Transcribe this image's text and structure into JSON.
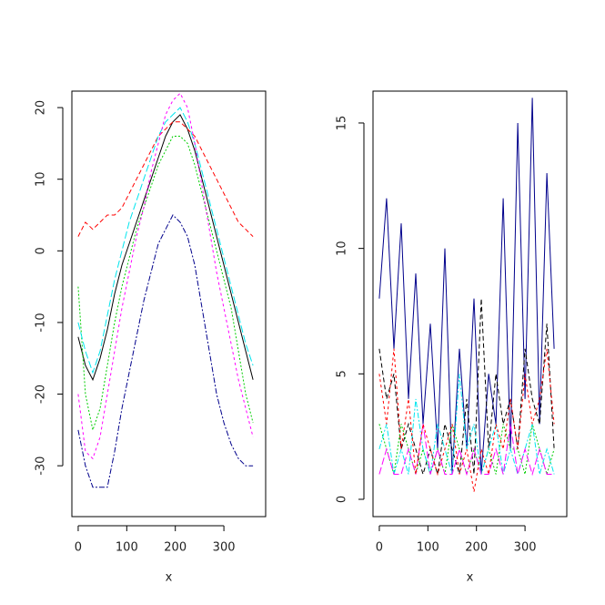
{
  "chart_data": [
    {
      "type": "line",
      "xlabel": "x",
      "xlim": [
        -13,
        386
      ],
      "ylim": [
        -37.1,
        22.3
      ],
      "xticks": [
        0,
        100,
        200,
        300
      ],
      "yticks": [
        -30,
        -20,
        -10,
        0,
        10,
        20
      ],
      "x": [
        0,
        15,
        30,
        45,
        60,
        75,
        90,
        105,
        120,
        135,
        150,
        165,
        180,
        195,
        210,
        225,
        240,
        255,
        270,
        285,
        300,
        315,
        330,
        345,
        360
      ],
      "series": [
        {
          "color": "#000000",
          "values": [
            -12,
            -16,
            -18,
            -15,
            -11,
            -6,
            -2,
            1,
            4,
            7,
            10,
            13,
            16,
            18,
            19,
            17,
            14,
            10,
            6,
            2,
            -2,
            -6,
            -10,
            -14,
            -18
          ]
        },
        {
          "color": "#ff0000",
          "values": [
            2,
            4,
            3,
            4,
            5,
            5,
            6,
            8,
            10,
            12,
            14,
            16,
            17,
            18,
            18,
            17,
            16,
            14,
            12,
            10,
            8,
            6,
            4,
            3,
            2
          ]
        },
        {
          "color": "#00cd00",
          "values": [
            -5,
            -20,
            -25,
            -22,
            -16,
            -10,
            -5,
            -1,
            3,
            6,
            9,
            12,
            14,
            16,
            16,
            15,
            12,
            8,
            4,
            0,
            -4,
            -8,
            -14,
            -20,
            -24
          ]
        },
        {
          "color": "#00008b",
          "values": [
            -25,
            -30,
            -33,
            -33,
            -33,
            -28,
            -22,
            -17,
            -12,
            -7,
            -3,
            1,
            3,
            5,
            4,
            2,
            -2,
            -8,
            -14,
            -20,
            -24,
            -27,
            -29,
            -30,
            -30
          ]
        },
        {
          "color": "#00e5ee",
          "values": [
            -10,
            -14,
            -17,
            -14,
            -9,
            -4,
            0,
            4,
            7,
            10,
            13,
            16,
            18,
            19,
            20,
            18,
            15,
            11,
            7,
            3,
            -1,
            -5,
            -9,
            -13,
            -16
          ]
        },
        {
          "color": "#ff00ff",
          "values": [
            -20,
            -28,
            -29,
            -26,
            -20,
            -14,
            -8,
            -3,
            2,
            6,
            11,
            15,
            19,
            21,
            22,
            20,
            15,
            9,
            3,
            -3,
            -8,
            -13,
            -18,
            -22,
            -26
          ]
        }
      ]
    },
    {
      "type": "line",
      "xlabel": "x",
      "xlim": [
        -13,
        386
      ],
      "ylim": [
        -0.69,
        16.27
      ],
      "xticks": [
        0,
        100,
        200,
        300
      ],
      "yticks": [
        0,
        5,
        10,
        15
      ],
      "x": [
        0,
        15,
        30,
        45,
        60,
        75,
        90,
        105,
        120,
        135,
        150,
        165,
        180,
        195,
        210,
        225,
        240,
        255,
        270,
        285,
        300,
        315,
        330,
        345,
        360
      ],
      "series": [
        {
          "color": "#00008b",
          "values": [
            8,
            12,
            6,
            11,
            4,
            9,
            3,
            7,
            2,
            10,
            1,
            6,
            2,
            8,
            1,
            5,
            3,
            12,
            2,
            15,
            4,
            16,
            3,
            13,
            6
          ]
        },
        {
          "color": "#000000",
          "values": [
            6,
            4,
            5,
            2,
            3,
            2,
            1,
            2,
            1,
            3,
            2,
            1,
            4,
            1,
            8,
            2,
            5,
            3,
            4,
            2,
            6,
            4,
            3,
            7,
            2
          ]
        },
        {
          "color": "#00cd00",
          "values": [
            3,
            2,
            1,
            3,
            2,
            1,
            2,
            1,
            2,
            1,
            3,
            2,
            1,
            2,
            1,
            2,
            1,
            3,
            2,
            2,
            1,
            3,
            2,
            1,
            2
          ]
        },
        {
          "color": "#00e5ee",
          "values": [
            2,
            3,
            1,
            2,
            1,
            4,
            2,
            1,
            3,
            2,
            1,
            5,
            2,
            3,
            1,
            2,
            3,
            1,
            2,
            1,
            2,
            3,
            1,
            2,
            1
          ]
        },
        {
          "color": "#ff00ff",
          "values": [
            1,
            2,
            1,
            1,
            2,
            1,
            3,
            1,
            2,
            1,
            1,
            2,
            1,
            2,
            1,
            1,
            2,
            1,
            3,
            1,
            2,
            1,
            2,
            1,
            1
          ]
        },
        {
          "color": "#ff0000",
          "values": [
            5,
            3,
            6,
            2,
            4,
            1,
            3,
            2,
            1,
            2,
            3,
            1,
            2,
            0.3,
            2,
            1,
            3,
            2,
            4,
            2,
            5,
            3,
            4,
            6,
            3
          ]
        }
      ]
    }
  ]
}
